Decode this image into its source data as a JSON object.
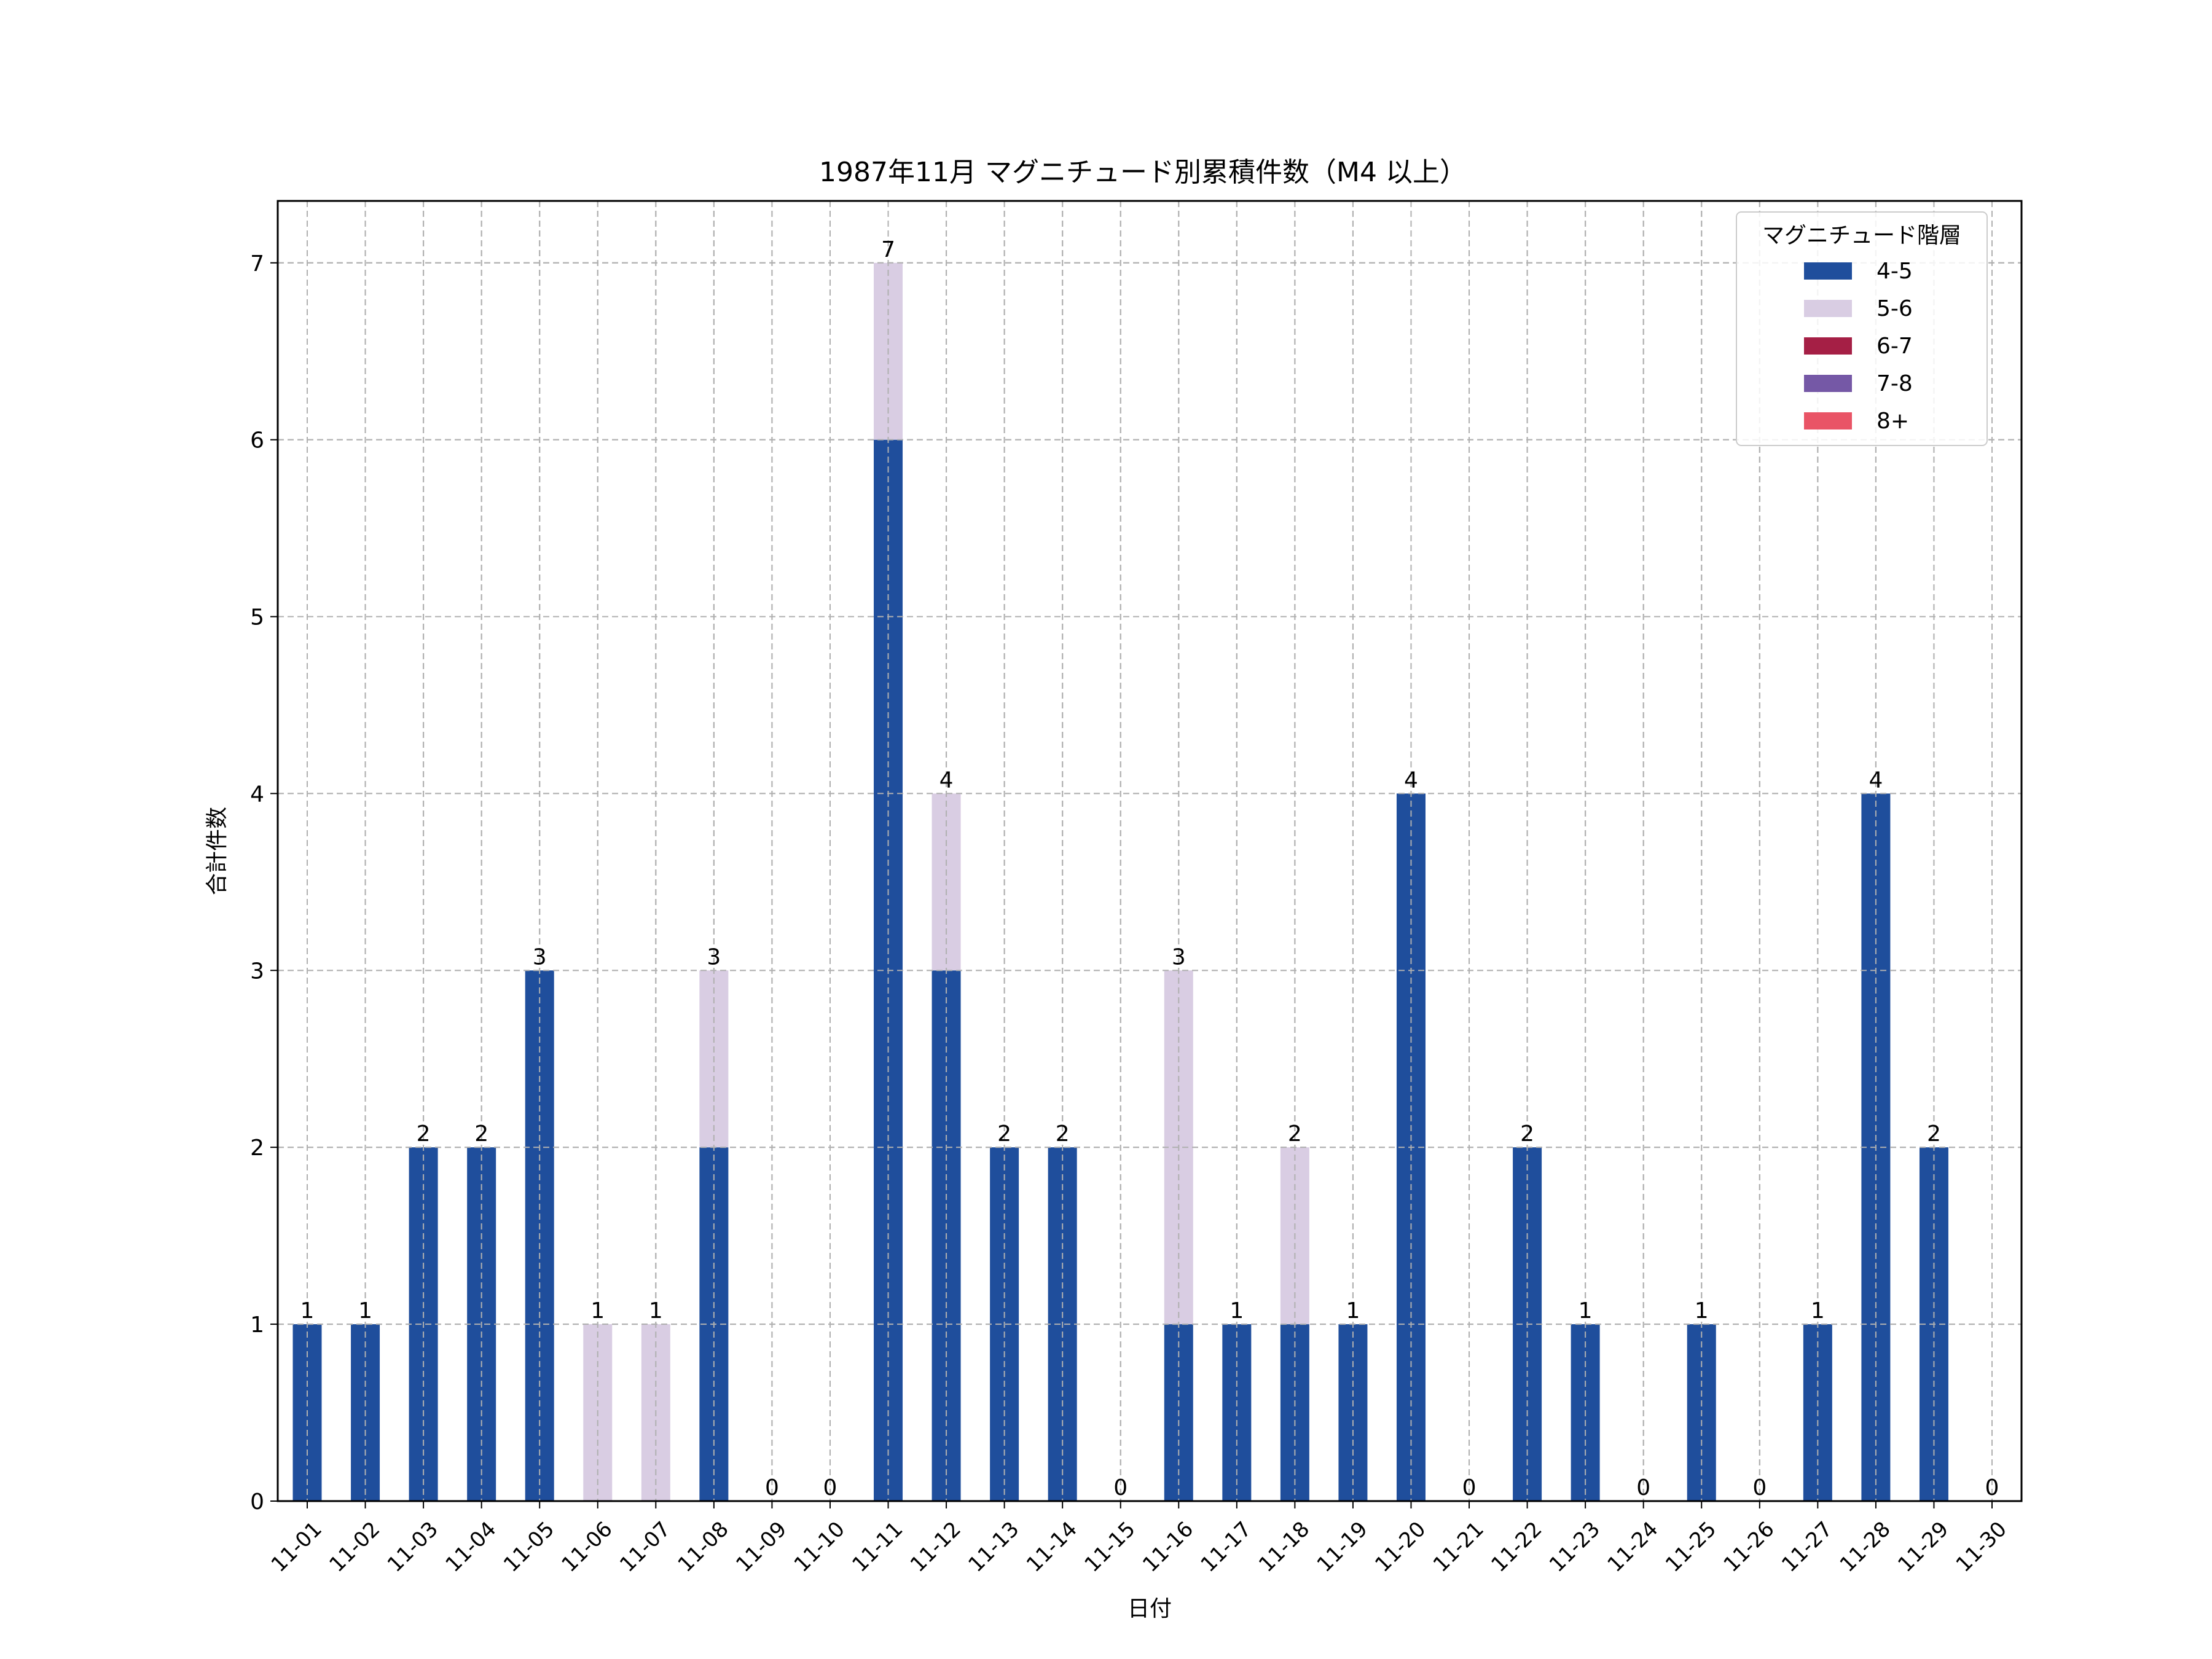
{
  "chart_data": {
    "type": "bar",
    "stacked": true,
    "title": "1987年11月 マグニチュード別累積件数（M4 以上）",
    "xlabel": "日付",
    "ylabel": "合計件数",
    "ylim": [
      0,
      7.35
    ],
    "yticks": [
      0,
      1,
      2,
      3,
      4,
      5,
      6,
      7
    ],
    "grid": true,
    "categories": [
      "11-01",
      "11-02",
      "11-03",
      "11-04",
      "11-05",
      "11-06",
      "11-07",
      "11-08",
      "11-09",
      "11-10",
      "11-11",
      "11-12",
      "11-13",
      "11-14",
      "11-15",
      "11-16",
      "11-17",
      "11-18",
      "11-19",
      "11-20",
      "11-21",
      "11-22",
      "11-23",
      "11-24",
      "11-25",
      "11-26",
      "11-27",
      "11-28",
      "11-29",
      "11-30"
    ],
    "legend": {
      "title": "マグニチュード階層",
      "placement": "top-right"
    },
    "series": [
      {
        "name": "4-5",
        "color": "#1f4e9c",
        "values": [
          1,
          1,
          2,
          2,
          3,
          0,
          0,
          2,
          0,
          0,
          6,
          3,
          2,
          2,
          0,
          1,
          1,
          1,
          1,
          4,
          0,
          2,
          1,
          0,
          1,
          0,
          1,
          4,
          2,
          0
        ]
      },
      {
        "name": "5-6",
        "color": "#d9cde3",
        "values": [
          0,
          0,
          0,
          0,
          0,
          1,
          1,
          1,
          0,
          0,
          1,
          1,
          0,
          0,
          0,
          2,
          0,
          1,
          0,
          0,
          0,
          0,
          0,
          0,
          0,
          0,
          0,
          0,
          0,
          0
        ]
      },
      {
        "name": "6-7",
        "color": "#a51f45",
        "values": [
          0,
          0,
          0,
          0,
          0,
          0,
          0,
          0,
          0,
          0,
          0,
          0,
          0,
          0,
          0,
          0,
          0,
          0,
          0,
          0,
          0,
          0,
          0,
          0,
          0,
          0,
          0,
          0,
          0,
          0
        ]
      },
      {
        "name": "7-8",
        "color": "#7558a6",
        "values": [
          0,
          0,
          0,
          0,
          0,
          0,
          0,
          0,
          0,
          0,
          0,
          0,
          0,
          0,
          0,
          0,
          0,
          0,
          0,
          0,
          0,
          0,
          0,
          0,
          0,
          0,
          0,
          0,
          0,
          0
        ]
      },
      {
        "name": "8+",
        "color": "#e95466",
        "values": [
          0,
          0,
          0,
          0,
          0,
          0,
          0,
          0,
          0,
          0,
          0,
          0,
          0,
          0,
          0,
          0,
          0,
          0,
          0,
          0,
          0,
          0,
          0,
          0,
          0,
          0,
          0,
          0,
          0,
          0
        ]
      }
    ],
    "totals": [
      1,
      1,
      2,
      2,
      3,
      1,
      1,
      3,
      0,
      0,
      7,
      4,
      2,
      2,
      0,
      3,
      1,
      2,
      1,
      4,
      0,
      2,
      1,
      0,
      1,
      0,
      1,
      4,
      2,
      0
    ]
  }
}
